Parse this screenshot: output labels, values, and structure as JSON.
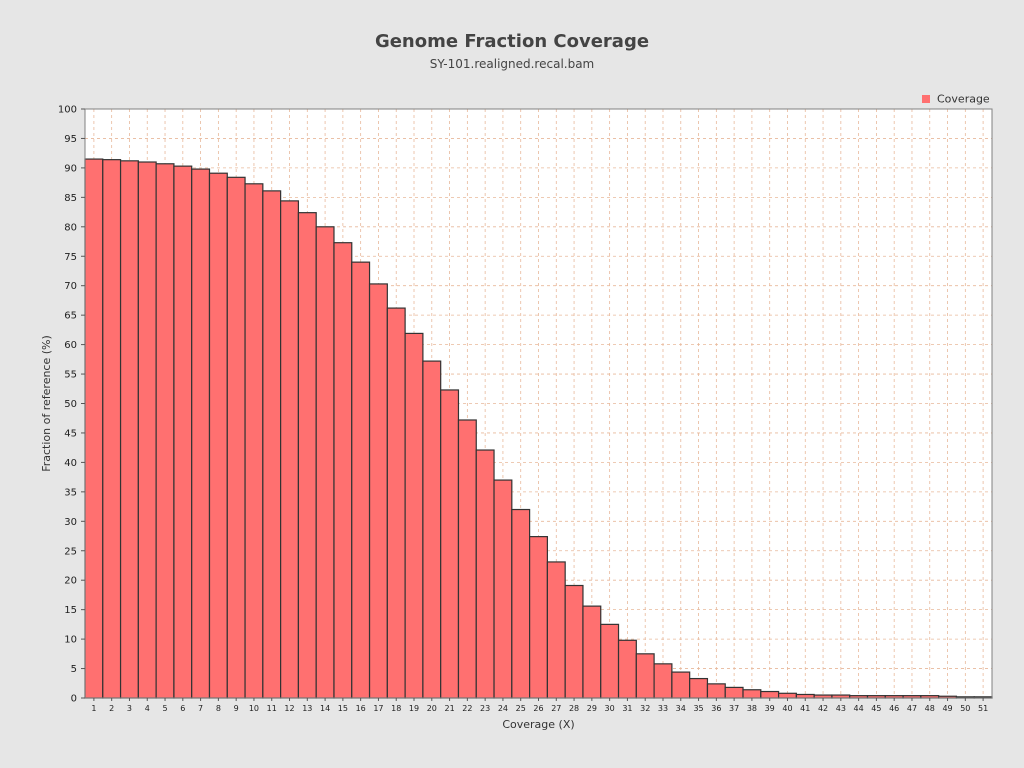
{
  "chart_data": {
    "type": "bar",
    "title": "Genome Fraction Coverage",
    "subtitle": "SY-101.realigned.recal.bam",
    "xlabel": "Coverage (X)",
    "ylabel": "Fraction of reference (%)",
    "ylim": [
      0,
      100
    ],
    "ytick_step": 5,
    "grid": true,
    "legend": {
      "position": "top-right",
      "entries": [
        "Coverage"
      ]
    },
    "colors": {
      "bar_fill": "#ff7070",
      "bar_stroke": "#333333",
      "grid": "#e8b89a",
      "plot_bg": "#ffffff"
    },
    "categories": [
      "1",
      "2",
      "3",
      "4",
      "5",
      "6",
      "7",
      "8",
      "9",
      "10",
      "11",
      "12",
      "13",
      "14",
      "15",
      "16",
      "17",
      "18",
      "19",
      "20",
      "21",
      "22",
      "23",
      "24",
      "25",
      "26",
      "27",
      "28",
      "29",
      "30",
      "31",
      "32",
      "33",
      "34",
      "35",
      "36",
      "37",
      "38",
      "39",
      "40",
      "41",
      "42",
      "43",
      "44",
      "45",
      "46",
      "47",
      "48",
      "49",
      "50",
      "51"
    ],
    "series": [
      {
        "name": "Coverage",
        "values": [
          91.5,
          91.4,
          91.2,
          91.0,
          90.7,
          90.3,
          89.8,
          89.1,
          88.4,
          87.3,
          86.1,
          84.4,
          82.4,
          80.0,
          77.3,
          74.0,
          70.3,
          66.2,
          61.9,
          57.2,
          52.3,
          47.2,
          42.1,
          37.0,
          32.0,
          27.4,
          23.1,
          19.1,
          15.6,
          12.5,
          9.8,
          7.5,
          5.8,
          4.4,
          3.3,
          2.4,
          1.8,
          1.4,
          1.1,
          0.8,
          0.6,
          0.5,
          0.5,
          0.4,
          0.4,
          0.4,
          0.4,
          0.4,
          0.3,
          0.2,
          0.2
        ]
      }
    ]
  }
}
